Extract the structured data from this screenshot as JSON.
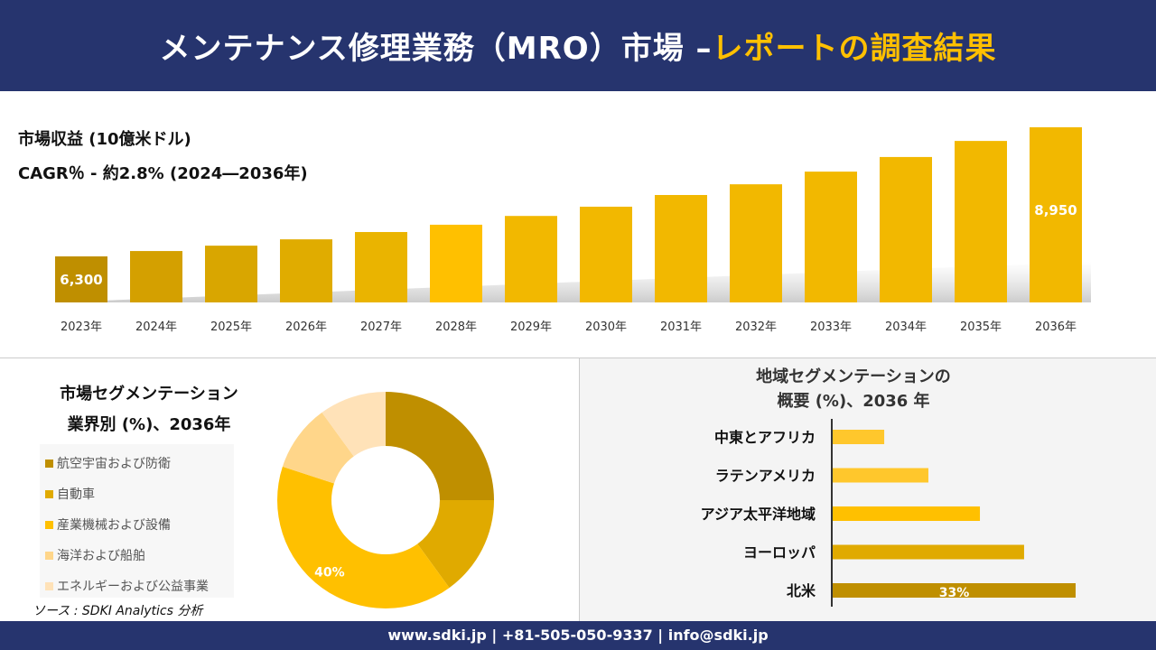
{
  "header": {
    "title_main": "メンテナンス修理業務（MRO）市場 –",
    "title_accent": "レポートの調査結果"
  },
  "chart_data": [
    {
      "type": "bar",
      "title": "市場収益 (10億米ドル)",
      "subtitle": "CAGR％ - 約2.8% (2024―2036年)",
      "categories": [
        "2023年",
        "2024年",
        "2025年",
        "2026年",
        "2027年",
        "2028年",
        "2029年",
        "2030年",
        "2031年",
        "2032年",
        "2033年",
        "2034年",
        "2035年",
        "2036年"
      ],
      "values": [
        6300,
        6410,
        6520,
        6650,
        6800,
        6950,
        7130,
        7320,
        7560,
        7780,
        8040,
        8340,
        8670,
        8950
      ],
      "data_labels": {
        "0": "6,300",
        "13": "8,950"
      },
      "ylim": [
        5350,
        8950
      ],
      "colors": [
        "#bf8f00",
        "#d4a000",
        "#d9a600",
        "#e0ac00",
        "#eab400",
        "#ffc000",
        "#f2b800",
        "#f2b800",
        "#f2b800",
        "#f2b800",
        "#f2b800",
        "#f2b800",
        "#f2b800",
        "#f2b800"
      ]
    },
    {
      "type": "pie",
      "title": "市場セグメンテーション\n業界別 (%)、2036年",
      "title_lines": [
        "市場セグメンテーション",
        "業界別 (%)、2036年"
      ],
      "categories": [
        "航空宇宙および防衛",
        "自動車",
        "産業機械および設備",
        "海洋および船舶",
        "エネルギーおよび公益事業"
      ],
      "values": [
        25,
        15,
        40,
        10,
        10
      ],
      "data_labels": {
        "2": "40%"
      },
      "colors": [
        "#bf8f00",
        "#e0aa00",
        "#ffc000",
        "#ffd68a",
        "#ffe2b8"
      ]
    },
    {
      "type": "bar",
      "orientation": "horizontal",
      "title_lines": [
        "地域セグメンテーションの",
        "概要 (%)、2036 年"
      ],
      "categories": [
        "中東とアフリカ",
        "ラテンアメリカ",
        "アジア太平洋地域",
        "ヨーロッパ",
        "北米"
      ],
      "values": [
        7,
        13,
        20,
        26,
        33
      ],
      "data_labels": {
        "4": "33%"
      },
      "colors": [
        "#ffc72c",
        "#ffc72c",
        "#ffc000",
        "#e0aa00",
        "#bf8f00"
      ]
    }
  ],
  "source": "ソース : SDKI Analytics 分析",
  "footer": "www.sdki.jp | +81-505-050-9337 | info@sdki.jp"
}
